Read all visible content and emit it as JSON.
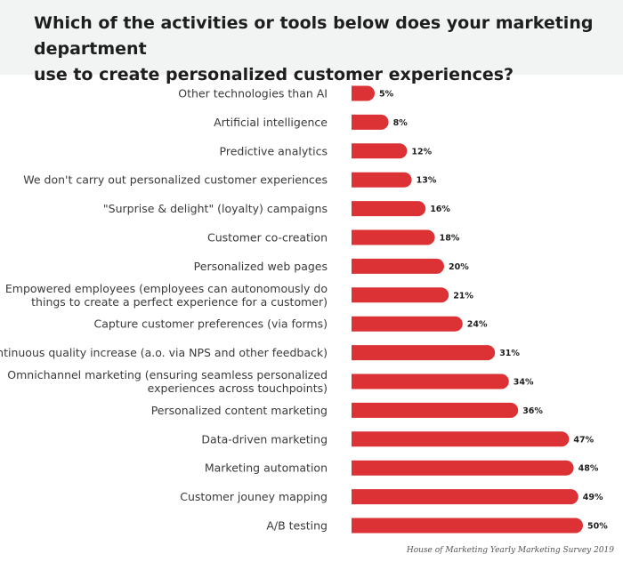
{
  "title": "Which of the activities or tools below does your marketing department\nuse to create personalized customer experiences?",
  "source": "House of Marketing Yearly Marketing Survey 2019",
  "chart_data": {
    "type": "bar",
    "orientation": "horizontal",
    "bar_color": "#dc3236",
    "value_suffix": "%",
    "categories": [
      [
        "Other technologies than AI"
      ],
      [
        "Artificial intelligence"
      ],
      [
        "Predictive analytics"
      ],
      [
        "We don't carry out personalized customer experiences"
      ],
      [
        "\"Surprise & delight\" (loyalty) campaigns"
      ],
      [
        "Customer co-creation"
      ],
      [
        "Personalized web pages"
      ],
      [
        "Empowered employees (employees can autonomously do",
        "things to create a perfect experience for a customer)"
      ],
      [
        "Capture customer preferences (via forms)"
      ],
      [
        "Continuous quality increase (a.o. via NPS and other feedback)"
      ],
      [
        "Omnichannel marketing (ensuring seamless personalized",
        "experiences across touchpoints)"
      ],
      [
        "Personalized content marketing"
      ],
      [
        "Data-driven marketing"
      ],
      [
        "Marketing automation"
      ],
      [
        "Customer jouney mapping"
      ],
      [
        "A/B testing"
      ]
    ],
    "values": [
      5,
      8,
      12,
      13,
      16,
      18,
      20,
      21,
      24,
      31,
      34,
      36,
      47,
      48,
      49,
      50
    ]
  }
}
